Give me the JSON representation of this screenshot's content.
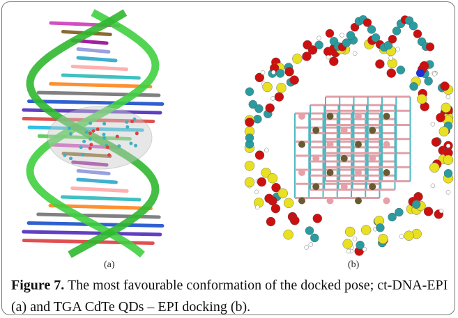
{
  "figure": {
    "panels": [
      {
        "label": "(a)"
      },
      {
        "label": "(b)"
      }
    ],
    "caption": {
      "label": "Figure 7.",
      "text": "The most favourable conformation of the docked pose; ct-DNA-EPI (a) and TGA CdTe QDs – EPI docking (b)."
    }
  }
}
